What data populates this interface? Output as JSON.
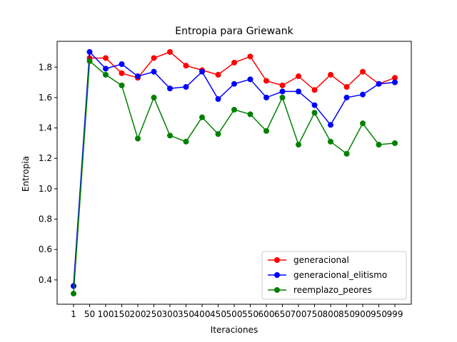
{
  "chart_data": {
    "type": "line",
    "title": "Entropia para Griewank",
    "xlabel": "Iteraciones",
    "ylabel": "Entropia",
    "categories": [
      "1",
      "50",
      "100",
      "150",
      "200",
      "250",
      "300",
      "350",
      "400",
      "450",
      "500",
      "550",
      "600",
      "650",
      "700",
      "750",
      "800",
      "850",
      "900",
      "950",
      "999"
    ],
    "ylim": [
      0.24,
      1.97
    ],
    "yticks": [
      "0.4",
      "0.6",
      "0.8",
      "1.0",
      "1.2",
      "1.4",
      "1.6",
      "1.8"
    ],
    "grid": false,
    "legend_position": "lower-right",
    "series": [
      {
        "name": "generacional",
        "color": "#ff0000",
        "marker": "circle",
        "values": [
          0.36,
          1.86,
          1.86,
          1.76,
          1.73,
          1.86,
          1.9,
          1.81,
          1.78,
          1.75,
          1.83,
          1.87,
          1.71,
          1.68,
          1.74,
          1.65,
          1.75,
          1.67,
          1.77,
          1.69,
          1.73
        ]
      },
      {
        "name": "generacional_elitismo",
        "color": "#0000ff",
        "marker": "circle",
        "values": [
          0.36,
          1.9,
          1.79,
          1.82,
          1.74,
          1.77,
          1.66,
          1.67,
          1.77,
          1.59,
          1.69,
          1.72,
          1.6,
          1.64,
          1.64,
          1.55,
          1.42,
          1.6,
          1.62,
          1.69,
          1.7
        ]
      },
      {
        "name": "reemplazo_peores",
        "color": "#008000",
        "marker": "circle",
        "values": [
          0.31,
          1.84,
          1.75,
          1.68,
          1.33,
          1.6,
          1.35,
          1.31,
          1.47,
          1.36,
          1.52,
          1.49,
          1.38,
          1.6,
          1.29,
          1.5,
          1.31,
          1.23,
          1.43,
          1.29,
          1.3
        ]
      }
    ]
  }
}
